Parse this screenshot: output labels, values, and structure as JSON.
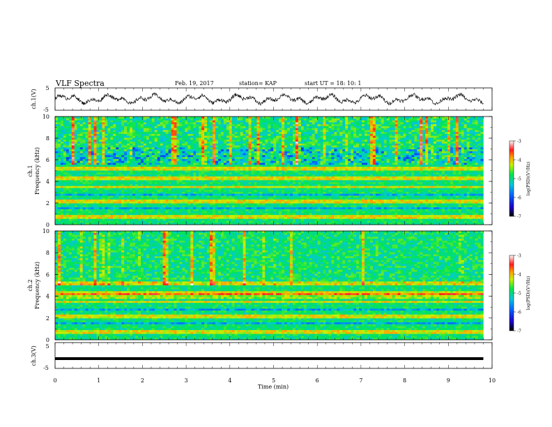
{
  "header": {
    "title": "VLF Spectra",
    "date": "Feb. 19, 2017",
    "station": "station= KAP",
    "start": "start  UT =   18: 10: 1"
  },
  "chart_data": [
    {
      "type": "line",
      "panel": "ch1-waveform",
      "ylabel": "ch.1(V)",
      "ylim": [
        -5,
        5
      ],
      "ytick_labels": [
        "5",
        "-5"
      ],
      "x_range_min": [
        0,
        9.8
      ],
      "description_values": {
        "baseline": 0,
        "amplitude": 1.2
      }
    },
    {
      "type": "heatmap",
      "panel": "ch1-spectrogram",
      "ylabel_line1": "ch.1",
      "ylabel_line2": "Frequency (kHz)",
      "ylim": [
        0,
        10
      ],
      "ytick_labels": [
        "0",
        "2",
        "4",
        "6",
        "8",
        "10"
      ],
      "x_range_min": [
        0,
        9.8
      ],
      "colorbar": {
        "label": "log(PSD)(V²/Hz)",
        "range": [
          -7,
          -3
        ],
        "tick_labels": [
          "-3",
          "-4",
          "-5",
          "-6",
          "-7"
        ]
      }
    },
    {
      "type": "heatmap",
      "panel": "ch2-spectrogram",
      "ylabel_line1": "ch.2",
      "ylabel_line2": "Frequency (kHz)",
      "ylim": [
        0,
        10
      ],
      "ytick_labels": [
        "0",
        "2",
        "4",
        "6",
        "8",
        "10"
      ],
      "x_range_min": [
        0,
        9.8
      ],
      "colorbar": {
        "label": "log(PSD)(V²/Hz)",
        "range": [
          -7,
          -3
        ],
        "tick_labels": [
          "-3",
          "-4",
          "-5",
          "-6",
          "-7"
        ]
      }
    },
    {
      "type": "line",
      "panel": "ch3-waveform",
      "ylabel": "ch.3(V)",
      "ylim": [
        -5,
        5
      ],
      "ytick_labels": [
        "5",
        "-5"
      ],
      "x_range_min": [
        0,
        9.8
      ],
      "constant_value": -1.2
    }
  ],
  "xaxis": {
    "label": "Time (min)",
    "range": [
      0,
      10
    ],
    "tick_labels": [
      "0",
      "1",
      "2",
      "3",
      "4",
      "5",
      "6",
      "7",
      "8",
      "9",
      "10"
    ]
  }
}
